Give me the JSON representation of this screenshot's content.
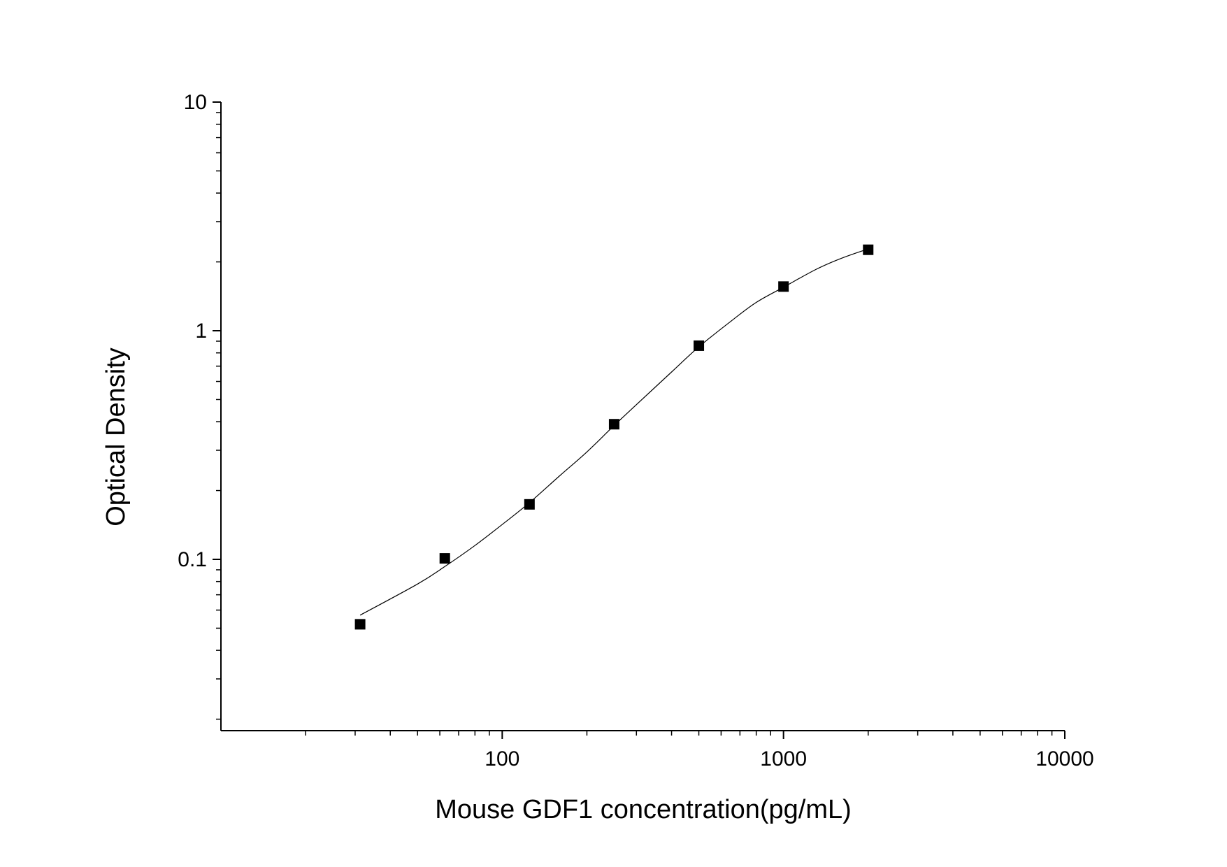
{
  "chart_data": {
    "type": "scatter",
    "title": "",
    "xlabel": "Mouse GDF1 concentration(pg/mL)",
    "ylabel": "Optical Density",
    "xscale": "log",
    "yscale": "log",
    "xlim": [
      10,
      10000
    ],
    "ylim": [
      0.02,
      10
    ],
    "x_tick_labels": [
      "100",
      "1000",
      "10000"
    ],
    "y_tick_labels": [
      "10",
      "1",
      "0.1"
    ],
    "grid": false,
    "legend": "none",
    "series": [
      {
        "marker": "square",
        "color": "#000000",
        "points": [
          {
            "x": 31.25,
            "y": 0.052
          },
          {
            "x": 62.5,
            "y": 0.101
          },
          {
            "x": 125,
            "y": 0.174
          },
          {
            "x": 250,
            "y": 0.39
          },
          {
            "x": 500,
            "y": 0.86
          },
          {
            "x": 1000,
            "y": 1.56
          },
          {
            "x": 2000,
            "y": 2.26
          }
        ]
      }
    ],
    "fit_curve": {
      "type": "smooth",
      "color": "#000000",
      "points": [
        {
          "x": 31.25,
          "y": 0.057
        },
        {
          "x": 50,
          "y": 0.078
        },
        {
          "x": 62.5,
          "y": 0.093
        },
        {
          "x": 80,
          "y": 0.115
        },
        {
          "x": 100,
          "y": 0.142
        },
        {
          "x": 125,
          "y": 0.177
        },
        {
          "x": 160,
          "y": 0.232
        },
        {
          "x": 200,
          "y": 0.295
        },
        {
          "x": 250,
          "y": 0.385
        },
        {
          "x": 300,
          "y": 0.475
        },
        {
          "x": 400,
          "y": 0.66
        },
        {
          "x": 500,
          "y": 0.85
        },
        {
          "x": 650,
          "y": 1.1
        },
        {
          "x": 800,
          "y": 1.33
        },
        {
          "x": 1000,
          "y": 1.55
        },
        {
          "x": 1300,
          "y": 1.85
        },
        {
          "x": 1600,
          "y": 2.07
        },
        {
          "x": 2000,
          "y": 2.28
        }
      ]
    }
  }
}
